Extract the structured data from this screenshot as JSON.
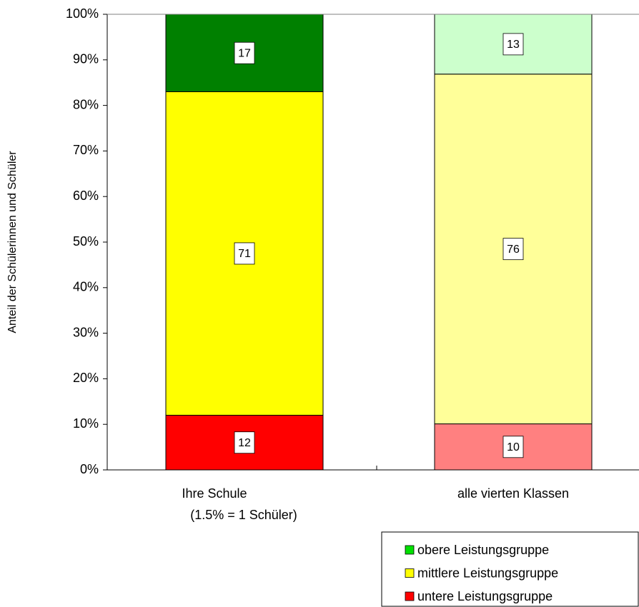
{
  "chart_data": {
    "type": "stacked_percent_bar",
    "ylabel": "Anteil der Schülerinnen und Schüler",
    "categories": [
      "Ihre Schule",
      "alle vierten Klassen"
    ],
    "annotations": [
      "(1.5% = 1 Schüler)"
    ],
    "series": [
      {
        "name": "untere Leistungsgruppe",
        "color": "#ff0000",
        "point_colors": [
          "#ff0000",
          "#ff8080"
        ],
        "values": [
          12,
          10
        ]
      },
      {
        "name": "mittlere Leistungsgruppe",
        "color": "#ffff00",
        "point_colors": [
          "#ffff00",
          "#ffff99"
        ],
        "values": [
          71,
          76
        ]
      },
      {
        "name": "obere Leistungsgruppe",
        "color": "#00e000",
        "point_colors": [
          "#008000",
          "#ccffcc"
        ],
        "values": [
          17,
          13
        ]
      }
    ],
    "ylim": [
      0,
      100
    ],
    "yticks": [
      {
        "value": 0,
        "label": "0%"
      },
      {
        "value": 10,
        "label": "10%"
      },
      {
        "value": 20,
        "label": "20%"
      },
      {
        "value": 30,
        "label": "30%"
      },
      {
        "value": 40,
        "label": "40%"
      },
      {
        "value": 50,
        "label": "50%"
      },
      {
        "value": 60,
        "label": "60%"
      },
      {
        "value": 70,
        "label": "70%"
      },
      {
        "value": 80,
        "label": "80%"
      },
      {
        "value": 90,
        "label": "90%"
      },
      {
        "value": 100,
        "label": "100%"
      }
    ],
    "legend": "bottom-right"
  }
}
